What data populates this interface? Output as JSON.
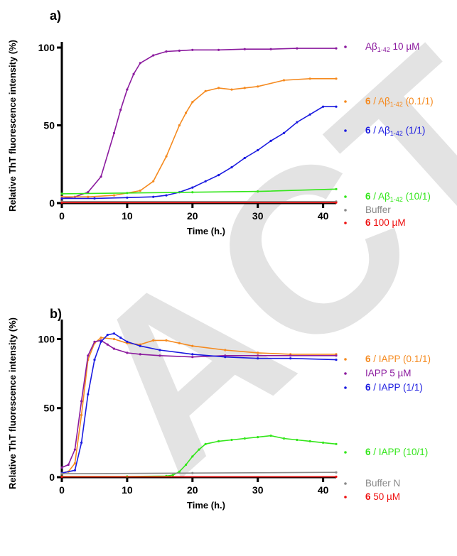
{
  "watermark": "ACT",
  "colors": {
    "purple": "#8b1a9e",
    "orange": "#f58a1f",
    "blue": "#1a1ae0",
    "green": "#33e61a",
    "gray": "#888888",
    "red": "#ee1111",
    "axis": "#000000"
  },
  "chart_data": [
    {
      "panel": "a)",
      "type": "line",
      "xlabel": "Time (h.)",
      "ylabel": "Relative ThT fluorescence intensity (%)",
      "xlim": [
        0,
        42
      ],
      "ylim": [
        0,
        100
      ],
      "xticks": [
        0,
        10,
        20,
        30,
        40
      ],
      "yticks": [
        0,
        50,
        100
      ],
      "series": [
        {
          "name": "Aβ1-42 10 µM",
          "legend": [
            {
              "t": "Aβ",
              "b": false
            },
            {
              "t": "1-42",
              "sub": true
            },
            {
              "t": " 10 µM",
              "b": false
            }
          ],
          "color": "purple",
          "x": [
            0,
            2,
            4,
            6,
            8,
            9,
            10,
            11,
            12,
            14,
            16,
            18,
            20,
            24,
            28,
            32,
            36,
            42
          ],
          "y": [
            3,
            4,
            7,
            17,
            45,
            60,
            73,
            83,
            90,
            95,
            97.5,
            98,
            98.5,
            98.5,
            99,
            99,
            99.5,
            99.5
          ]
        },
        {
          "name": "6 / Aβ1-42 (0.1/1)",
          "legend": [
            {
              "t": "6",
              "b": true
            },
            {
              "t": " / Aβ",
              "b": false
            },
            {
              "t": "1-42",
              "sub": true
            },
            {
              "t": " (0.1/1)",
              "b": false
            }
          ],
          "color": "orange",
          "x": [
            0,
            4,
            8,
            12,
            14,
            16,
            18,
            19,
            20,
            22,
            24,
            26,
            28,
            30,
            34,
            38,
            42
          ],
          "y": [
            4,
            4,
            5,
            8,
            14,
            30,
            50,
            58,
            65,
            72,
            74,
            73,
            74,
            75,
            79,
            80,
            80
          ]
        },
        {
          "name": "6 / Aβ1-42 (1/1)",
          "legend": [
            {
              "t": "6",
              "b": true
            },
            {
              "t": " / Aβ",
              "b": false
            },
            {
              "t": "1-42",
              "sub": true
            },
            {
              "t": " (1/1)",
              "b": false
            }
          ],
          "color": "blue",
          "x": [
            0,
            5,
            10,
            14,
            16,
            18,
            20,
            22,
            24,
            26,
            28,
            30,
            32,
            34,
            36,
            38,
            40,
            42
          ],
          "y": [
            3,
            3,
            3.5,
            4,
            5,
            7,
            10,
            14,
            18,
            23,
            29,
            34,
            40,
            45,
            52,
            57,
            62,
            62
          ]
        },
        {
          "name": "6 / Aβ1-42 (10/1)",
          "legend": [
            {
              "t": "6",
              "b": true
            },
            {
              "t": " / Aβ",
              "b": false
            },
            {
              "t": "1-42",
              "sub": true
            },
            {
              "t": " (10/1)",
              "b": false
            }
          ],
          "color": "green",
          "x": [
            0,
            10,
            20,
            30,
            42
          ],
          "y": [
            6,
            6.5,
            7,
            7.5,
            9
          ]
        },
        {
          "name": "Buffer",
          "legend": [
            {
              "t": "Buffer",
              "b": false
            }
          ],
          "color": "gray",
          "x": [
            0,
            42
          ],
          "y": [
            1,
            1
          ]
        },
        {
          "name": "6 100 µM",
          "legend": [
            {
              "t": "6",
              "b": true
            },
            {
              "t": " 100 µM",
              "b": false
            }
          ],
          "color": "red",
          "x": [
            0,
            42
          ],
          "y": [
            0.3,
            0.3
          ]
        }
      ]
    },
    {
      "panel": "b)",
      "type": "line",
      "xlabel": "Time (h.)",
      "ylabel": "Relative ThT fluorescence intensity (%)",
      "xlim": [
        0,
        42
      ],
      "ylim": [
        0,
        110
      ],
      "xticks": [
        0,
        10,
        20,
        30,
        40
      ],
      "yticks": [
        0,
        50,
        100
      ],
      "series": [
        {
          "name": "6 / IAPP (0.1/1)",
          "legend": [
            {
              "t": "6",
              "b": true
            },
            {
              "t": " / IAPP (0.1/1)",
              "b": false
            }
          ],
          "color": "orange",
          "x": [
            0,
            1,
            2,
            3,
            4,
            5,
            6,
            8,
            10,
            12,
            14,
            16,
            18,
            20,
            25,
            30,
            35,
            42
          ],
          "y": [
            3,
            4,
            10,
            45,
            85,
            97,
            101,
            100,
            97,
            96,
            99,
            99,
            97,
            95,
            92,
            90,
            89,
            89
          ]
        },
        {
          "name": "IAPP 5 µM",
          "legend": [
            {
              "t": "IAPP 5 µM",
              "b": false
            }
          ],
          "color": "purple",
          "x": [
            0,
            1,
            2,
            3,
            4,
            5,
            6,
            7,
            8,
            10,
            12,
            15,
            20,
            25,
            30,
            35,
            42
          ],
          "y": [
            7,
            9,
            20,
            55,
            88,
            98,
            99,
            96,
            93,
            90,
            89,
            88,
            87,
            88,
            88,
            88,
            88
          ]
        },
        {
          "name": "6 / IAPP (1/1)",
          "legend": [
            {
              "t": "6",
              "b": true
            },
            {
              "t": " / IAPP (1/1)",
              "b": false
            }
          ],
          "color": "blue",
          "x": [
            0,
            2,
            3,
            4,
            5,
            6,
            7,
            8,
            9,
            10,
            12,
            15,
            20,
            25,
            30,
            35,
            42
          ],
          "y": [
            3,
            5,
            25,
            60,
            85,
            98,
            103,
            104,
            101,
            98,
            95,
            92,
            89,
            87,
            86,
            86,
            85
          ]
        },
        {
          "name": "6 / IAPP (10/1)",
          "legend": [
            {
              "t": "6",
              "b": true
            },
            {
              "t": " / IAPP (10/1)",
              "b": false
            }
          ],
          "color": "green",
          "x": [
            0,
            10,
            16,
            17,
            18,
            19,
            20,
            21,
            22,
            24,
            26,
            28,
            30,
            32,
            34,
            36,
            38,
            40,
            42
          ],
          "y": [
            0.5,
            0.5,
            0.8,
            1.5,
            4,
            9,
            15,
            20,
            24,
            26,
            27,
            28,
            29,
            30,
            28,
            27,
            26,
            25,
            24
          ]
        },
        {
          "name": "Buffer N",
          "legend": [
            {
              "t": "Buffer N",
              "b": false
            }
          ],
          "color": "gray",
          "x": [
            0,
            20,
            42
          ],
          "y": [
            2.5,
            3,
            3.5
          ]
        },
        {
          "name": "6 50 µM",
          "legend": [
            {
              "t": "6",
              "b": true
            },
            {
              "t": " 50 µM",
              "b": false
            }
          ],
          "color": "red",
          "x": [
            0,
            42
          ],
          "y": [
            0.3,
            0.3
          ]
        }
      ]
    }
  ]
}
